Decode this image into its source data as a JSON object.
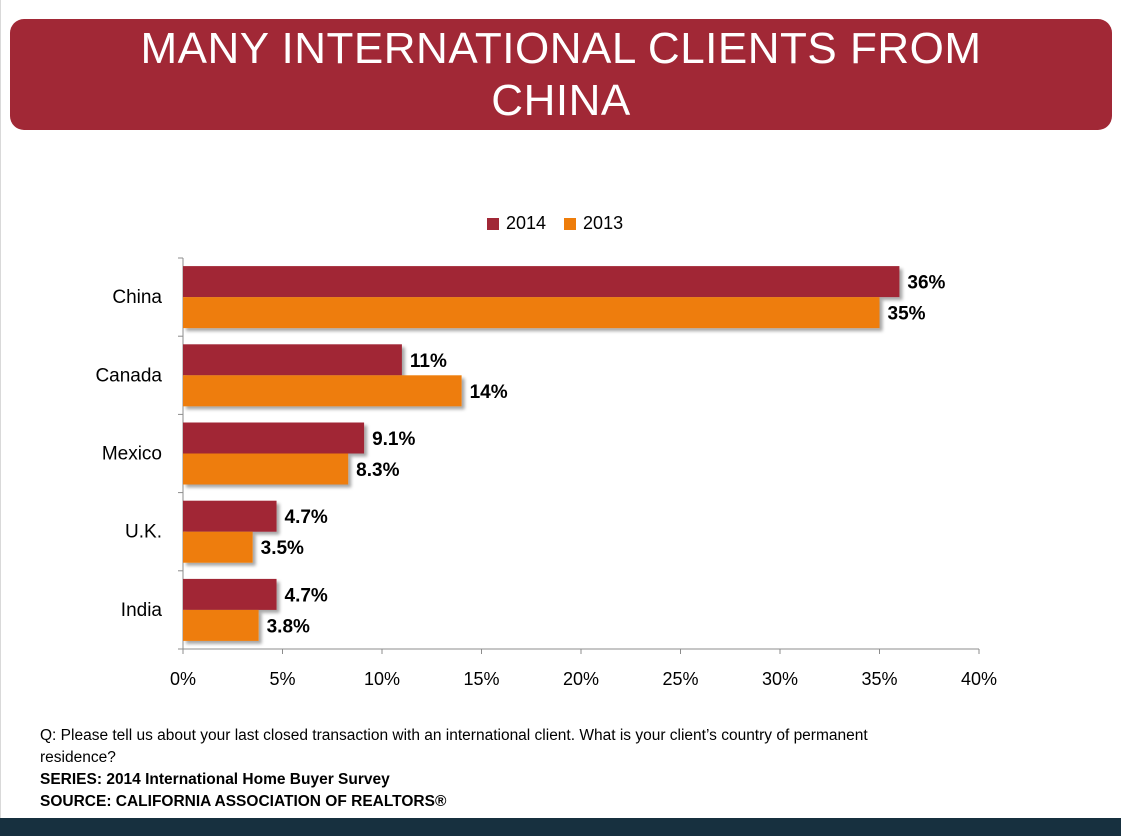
{
  "title": "MANY INTERNATIONAL CLIENTS FROM CHINA",
  "legend": [
    {
      "name": "2014",
      "color": "#a12836"
    },
    {
      "name": "2013",
      "color": "#ee7d0b"
    }
  ],
  "notes": {
    "question": "Q: Please tell us about your last closed transaction with an international client. What is your client’s country of permanent residence?",
    "series": "SERIES: 2014 International Home Buyer Survey",
    "source": "SOURCE:  CALIFORNIA ASSOCIATION OF REALTORS®"
  },
  "chart_data": {
    "type": "bar",
    "orientation": "horizontal",
    "categories": [
      "China",
      "Canada",
      "Mexico",
      "U.K.",
      "India"
    ],
    "series": [
      {
        "name": "2014",
        "color": "#a12836",
        "values": [
          36,
          11,
          9.1,
          4.7,
          4.7
        ],
        "labels": [
          "36%",
          "11%",
          "9.1%",
          "4.7%",
          "4.7%"
        ]
      },
      {
        "name": "2013",
        "color": "#ee7d0b",
        "values": [
          35,
          14,
          8.3,
          3.5,
          3.8
        ],
        "labels": [
          "35%",
          "14%",
          "8.3%",
          "3.5%",
          "3.8%"
        ]
      }
    ],
    "xlim": [
      0,
      40
    ],
    "xticks": [
      "0%",
      "5%",
      "10%",
      "15%",
      "20%",
      "25%",
      "30%",
      "35%",
      "40%"
    ],
    "xlabel": "",
    "ylabel": "",
    "grid": false,
    "legend_position": "top"
  }
}
